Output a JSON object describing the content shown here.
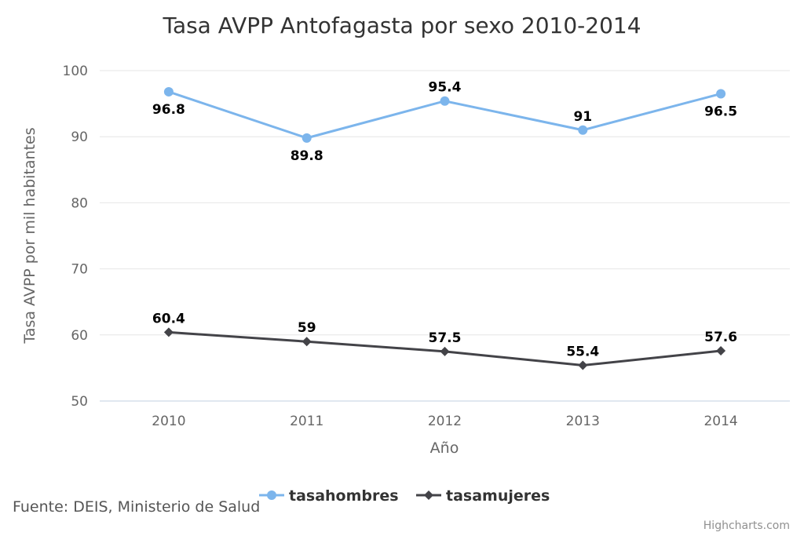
{
  "chart_data": {
    "type": "line",
    "title": "Tasa AVPP Antofagasta por sexo 2010-2014",
    "xlabel": "Año",
    "ylabel": "Tasa AVPP por mil habitantes",
    "categories": [
      "2010",
      "2011",
      "2012",
      "2013",
      "2014"
    ],
    "ylim": [
      50,
      100
    ],
    "yticks": [
      50,
      60,
      70,
      80,
      90,
      100
    ],
    "grid": true,
    "legend_position": "bottom-center",
    "series": [
      {
        "name": "tasahombres",
        "values": [
          96.8,
          89.8,
          95.4,
          91,
          96.5
        ],
        "color": "#7cb5ec",
        "marker": "circle"
      },
      {
        "name": "tasamujeres",
        "values": [
          60.4,
          59,
          57.5,
          55.4,
          57.6
        ],
        "color": "#434348",
        "marker": "diamond"
      }
    ]
  },
  "source_note": "Fuente: DEIS, Ministerio de Salud",
  "credits": "Highcharts.com"
}
